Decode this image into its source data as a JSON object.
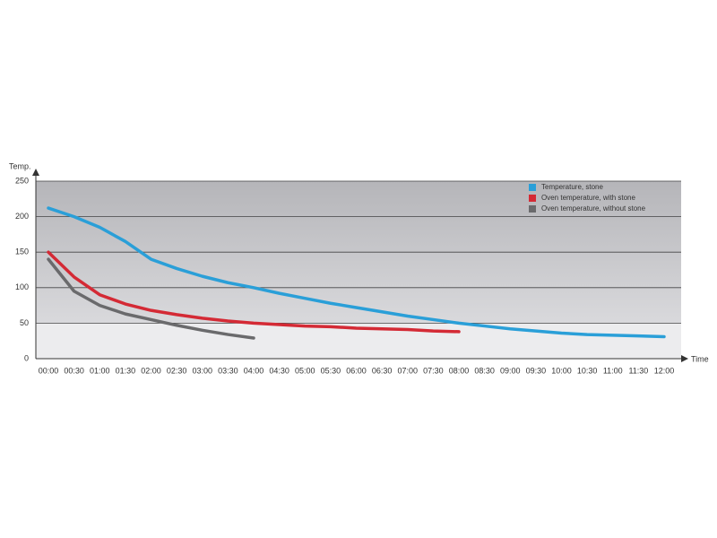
{
  "chart_data": {
    "type": "line",
    "y_label": "Temp.",
    "x_label": "Time",
    "categories": [
      "00:00",
      "00:30",
      "01:00",
      "01:30",
      "02:00",
      "02:30",
      "03:00",
      "03:30",
      "04:00",
      "04:30",
      "05:00",
      "05:30",
      "06:00",
      "06:30",
      "07:00",
      "07:30",
      "08:00",
      "08:30",
      "09:00",
      "09:30",
      "10:00",
      "10:30",
      "11:00",
      "11:30",
      "12:00"
    ],
    "series": [
      {
        "name": "Temperature, stone",
        "color": "#2a9fd8",
        "values": [
          212,
          200,
          185,
          165,
          140,
          127,
          116,
          107,
          100,
          92,
          85,
          78,
          72,
          66,
          60,
          55,
          50,
          46,
          42,
          39,
          36,
          34,
          33,
          32,
          31
        ]
      },
      {
        "name": "Oven temperature, with stone",
        "color": "#d42a35",
        "values": [
          150,
          115,
          90,
          77,
          68,
          62,
          57,
          53,
          50,
          48,
          46,
          45,
          43,
          42,
          41,
          39,
          38,
          null,
          null,
          null,
          null,
          null,
          null,
          null,
          null
        ]
      },
      {
        "name": "Oven temperature, without stone",
        "color": "#6a6a6c",
        "values": [
          140,
          95,
          75,
          63,
          55,
          47,
          40,
          34,
          29,
          null,
          null,
          null,
          null,
          null,
          null,
          null,
          null,
          null,
          null,
          null,
          null,
          null,
          null,
          null,
          null
        ]
      }
    ],
    "ylim": [
      0,
      250
    ],
    "yticks": [
      0,
      50,
      100,
      150,
      200,
      250
    ],
    "grid": true,
    "legend": "top-right"
  }
}
